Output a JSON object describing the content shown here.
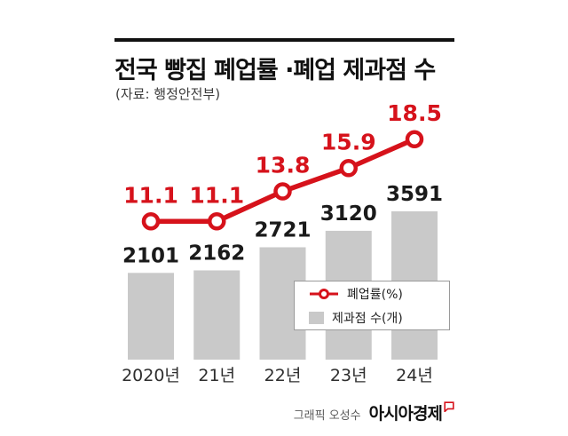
{
  "header": {
    "title": "전국 빵집 폐업률 ·폐업 제과점 수",
    "source": "(자료: 행정안전부)"
  },
  "legend": {
    "line_label": "폐업률(%)",
    "bar_label": "제과점 수(개)"
  },
  "footer": {
    "credit": "그래픽 오성수",
    "brand": "아시아경제"
  },
  "colors": {
    "line": "#d6121b",
    "bar": "#c9c9c9",
    "text": "#111111"
  },
  "chart_data": {
    "type": "combo",
    "categories": [
      "2020년",
      "21년",
      "22년",
      "23년",
      "24년"
    ],
    "series": [
      {
        "name": "폐업률(%)",
        "type": "line",
        "values": [
          11.1,
          11.1,
          13.8,
          15.9,
          18.5
        ]
      },
      {
        "name": "제과점 수(개)",
        "type": "bar",
        "values": [
          2101,
          2162,
          2721,
          3120,
          3591
        ]
      }
    ],
    "grid": false,
    "legend_position": "inside-right"
  }
}
